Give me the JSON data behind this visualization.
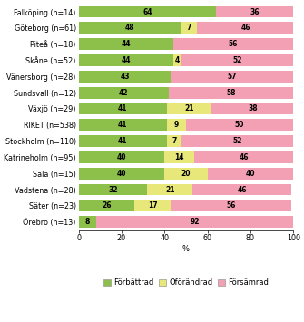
{
  "categories": [
    "Falköping (n=14)",
    "Göteborg (n=61)",
    "Piteå (n=18)",
    "Skåne (n=52)",
    "Vänersborg (n=28)",
    "Sundsvall (n=12)",
    "Växjö (n=29)",
    "RIKET (n=538)",
    "Stockholm (n=110)",
    "Katrineholm (n=95)",
    "Sala (n=15)",
    "Vadstena (n=28)",
    "Säter (n=23)",
    "Örebro (n=13)"
  ],
  "forbattrad": [
    64,
    48,
    44,
    44,
    43,
    42,
    41,
    41,
    41,
    40,
    40,
    32,
    26,
    8
  ],
  "oforandrad": [
    0,
    7,
    0,
    4,
    0,
    0,
    21,
    9,
    7,
    14,
    20,
    21,
    17,
    0
  ],
  "forsamrad": [
    36,
    46,
    56,
    52,
    57,
    58,
    38,
    50,
    52,
    46,
    40,
    46,
    56,
    92
  ],
  "color_forbattrad": "#8dc04b",
  "color_oforandrad": "#e8e87a",
  "color_forsamrad": "#f4a0b4",
  "legend_forbattrad": "Förbättrad",
  "legend_oforandrad": "Oförändrad",
  "legend_forsamrad": "Försämrad",
  "xlabel": "%",
  "xlim": [
    0,
    100
  ],
  "xticks": [
    0,
    20,
    40,
    60,
    80,
    100
  ],
  "bar_height": 0.72,
  "label_fontsize": 6.0,
  "tick_fontsize": 5.8,
  "legend_fontsize": 6.0,
  "value_fontsize": 5.5,
  "background_color": "#ffffff"
}
